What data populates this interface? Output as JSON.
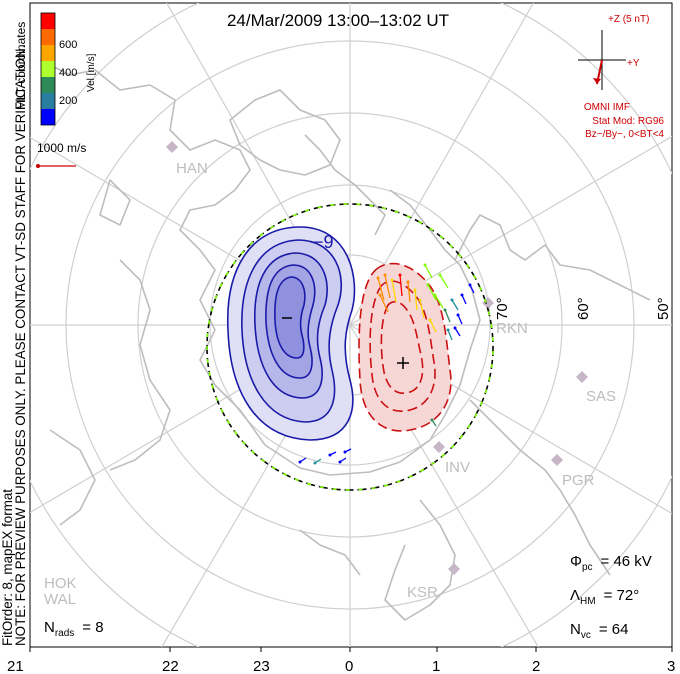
{
  "title": "24/Mar/2009  13:00–13:02  UT",
  "side_notes": {
    "left_main": "NOTE: FOR PREVIEW PURPOSES ONLY. PLEASE CONTACT VT-SD STAFF FOR VERIFICATION.",
    "left_coords": "MLT coordinates",
    "left_fit": "FitOrder: 8, mapEX format"
  },
  "colorbar": {
    "label": "Vel [m/s]",
    "ticks": [
      "600",
      "400",
      "200"
    ],
    "colors": [
      "#0000ff",
      "#1e90a0",
      "#2e8b57",
      "#7cfc00",
      "#ffd700",
      "#ff8c00",
      "#ff0000"
    ]
  },
  "velocity_scale": {
    "label": "1000 m/s"
  },
  "imf": {
    "z_label": "+Z (5 nT)",
    "y_label": "+Y",
    "source": "OMNI IMF",
    "stat_mod": "Stat Mod: RG96",
    "condition": "Bz−/By−, 0<BT<4"
  },
  "latitude_labels": [
    "70°",
    "60°",
    "50°"
  ],
  "stations": [
    "HAN",
    "RKN",
    "SAS",
    "INV",
    "PGR",
    "KSR",
    "HOK",
    "WAL"
  ],
  "mlt_ticks": [
    "21",
    "22",
    "23",
    "0",
    "1",
    "2",
    "3"
  ],
  "contour_label": "−9",
  "stats": {
    "phi_symbol": "Φ",
    "phi_sub": "pc",
    "phi_value": "=  46 kV",
    "lambda_symbol": "Λ",
    "lambda_sub": "HM",
    "lambda_value": "=  72°",
    "nvc_symbol": "N",
    "nvc_sub": "vc",
    "nvc_value": "=  64",
    "nrads_symbol": "N",
    "nrads_sub": "rads",
    "nrads_value": "=  8"
  },
  "colors": {
    "negative_cell": "#1a1aa8",
    "positive_cell": "#cc1111",
    "grid": "#cfcfcf",
    "coast": "#bdbdbd",
    "imf": "#cc0000"
  }
}
